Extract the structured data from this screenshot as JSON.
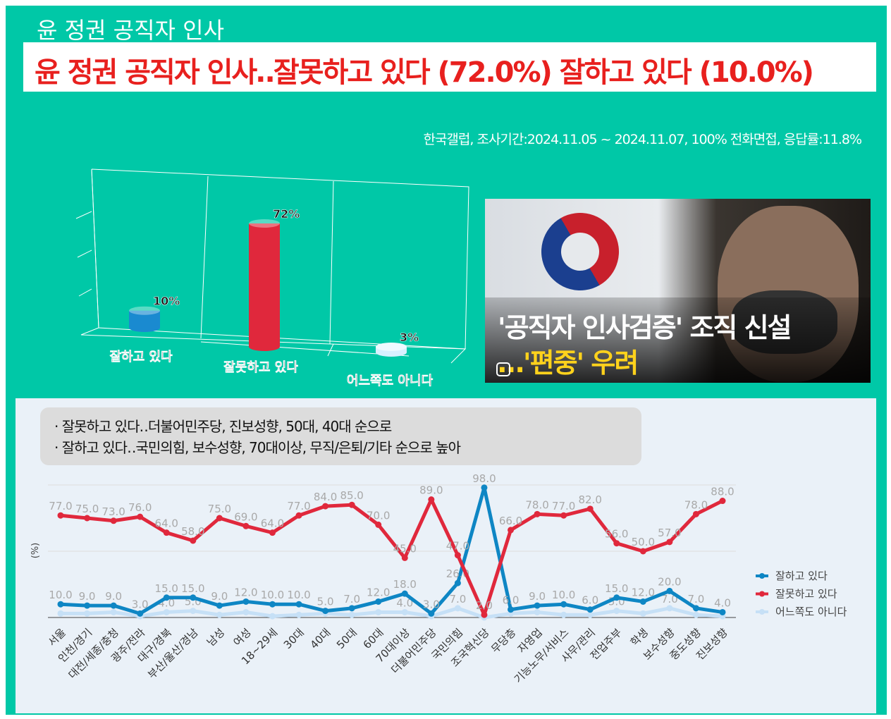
{
  "header": {
    "title": "윤 정권 공직자 인사",
    "headline": "윤 정권 공직자 인사‥잘못하고 있다 (72.0%) 잘하고 있다 (10.0%)",
    "source": "한국갤럽, 조사기간:2024.11.05 ~ 2024.11.07, 100% 전화면접, 응답률:11.8%"
  },
  "photo": {
    "line1": "'공직자 인사검증' 조직 신설",
    "line2": "…'편중' 우려"
  },
  "notes": [
    "· 잘못하고 있다‥더불어민주당, 진보성향, 50대, 40대 순으로",
    "· 잘하고 있다‥국민의힘, 보수성향, 70대이상, 무직/은퇴/기타 순으로 높아"
  ],
  "chart_data": [
    {
      "type": "bar",
      "title": "",
      "categories": [
        "잘하고 있다",
        "잘못하고 있다",
        "어느쪽도 아니다"
      ],
      "values": [
        10,
        72,
        3
      ],
      "labels": [
        "10%",
        "72%",
        "3%"
      ],
      "colors": [
        "#1a8ad0",
        "#e0283c",
        "#d8f0ff"
      ]
    },
    {
      "type": "line",
      "ylabel": "(%)",
      "ylim": [
        0,
        100
      ],
      "grid": true,
      "legend": "right",
      "categories": [
        "서울",
        "인천/경기",
        "대전/세종/충청",
        "광주/전라",
        "대구/경북",
        "부산/울산/경남",
        "남성",
        "여성",
        "18~29세",
        "30대",
        "40대",
        "50대",
        "60대",
        "70대이상",
        "더불어민주당",
        "국민의힘",
        "조국혁신당",
        "무당층",
        "자영업",
        "기능노무/서비스",
        "사무/관리",
        "전업주부",
        "학생",
        "보수성향",
        "중도성향",
        "진보성향"
      ],
      "series": [
        {
          "name": "잘하고 있다",
          "color": "#0e86c4",
          "values": [
            10,
            9,
            9,
            3,
            15,
            15,
            9,
            12,
            10,
            10,
            5,
            7,
            12,
            18,
            3,
            26,
            98,
            6,
            9,
            10,
            6,
            15,
            12,
            20,
            7,
            4
          ]
        },
        {
          "name": "잘못하고 있다",
          "color": "#e0283c",
          "values": [
            77,
            75,
            73,
            76,
            64,
            58,
            75,
            69,
            64,
            77,
            84,
            85,
            70,
            45,
            89,
            47,
            2,
            66,
            78,
            77,
            82,
            56,
            50,
            57,
            78,
            88
          ]
        },
        {
          "name": "어느쪽도 아니다",
          "color": "#c6e0f6",
          "values": [
            3,
            3,
            4,
            1,
            4,
            5,
            2,
            4,
            1,
            2,
            3,
            2,
            4,
            4,
            1,
            7,
            0,
            3,
            4,
            2,
            2,
            5,
            3,
            7,
            2,
            1
          ],
          "shown_labels": {
            "4": "4.0",
            "5": "5.0",
            "13": "4.0",
            "15": "7.0",
            "21": "5.0",
            "23": "7.0"
          }
        }
      ]
    }
  ]
}
